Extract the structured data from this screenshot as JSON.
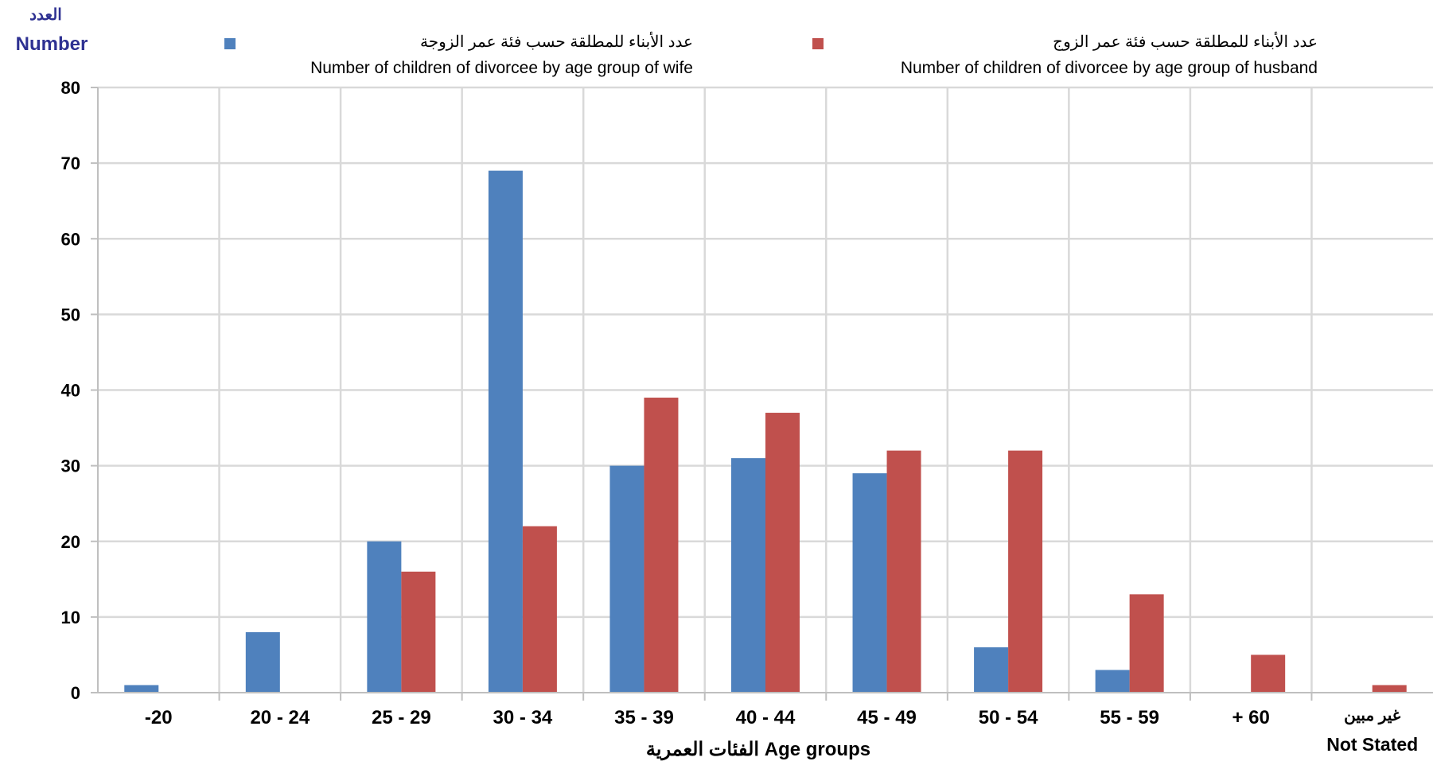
{
  "chart_data": {
    "type": "bar",
    "ylabel_ar": "العدد",
    "ylabel_en": "Number",
    "xlabel": "الفئات العمرية Age groups",
    "categories": [
      "-20",
      "20 - 24",
      "25 - 29",
      "30 - 34",
      "35 - 39",
      "40 - 44",
      "45 - 49",
      "50 - 54",
      "55 - 59",
      "+ 60",
      "غير مبين"
    ],
    "category_sub": [
      "",
      "",
      "",
      "",
      "",
      "",
      "",
      "",
      "",
      "",
      "Not Stated"
    ],
    "ylim": [
      0,
      80
    ],
    "yticks": [
      0,
      10,
      20,
      30,
      40,
      50,
      60,
      70,
      80
    ],
    "grid": true,
    "legend_position": "top",
    "series": [
      {
        "name_ar": "عدد الأبناء للمطلقة حسب فئة عمر الزوجة",
        "name": "Number of children of divorcee by age group of wife",
        "color": "#4f81bd",
        "values": [
          1,
          8,
          20,
          69,
          30,
          31,
          29,
          6,
          3,
          0,
          0
        ]
      },
      {
        "name_ar": "عدد الأبناء للمطلقة حسب فئة عمر الزوج",
        "name": "Number of children of divorcee by age group of husband",
        "color": "#c0504d",
        "values": [
          0,
          0,
          16,
          22,
          39,
          37,
          32,
          32,
          13,
          5,
          1
        ]
      }
    ]
  }
}
